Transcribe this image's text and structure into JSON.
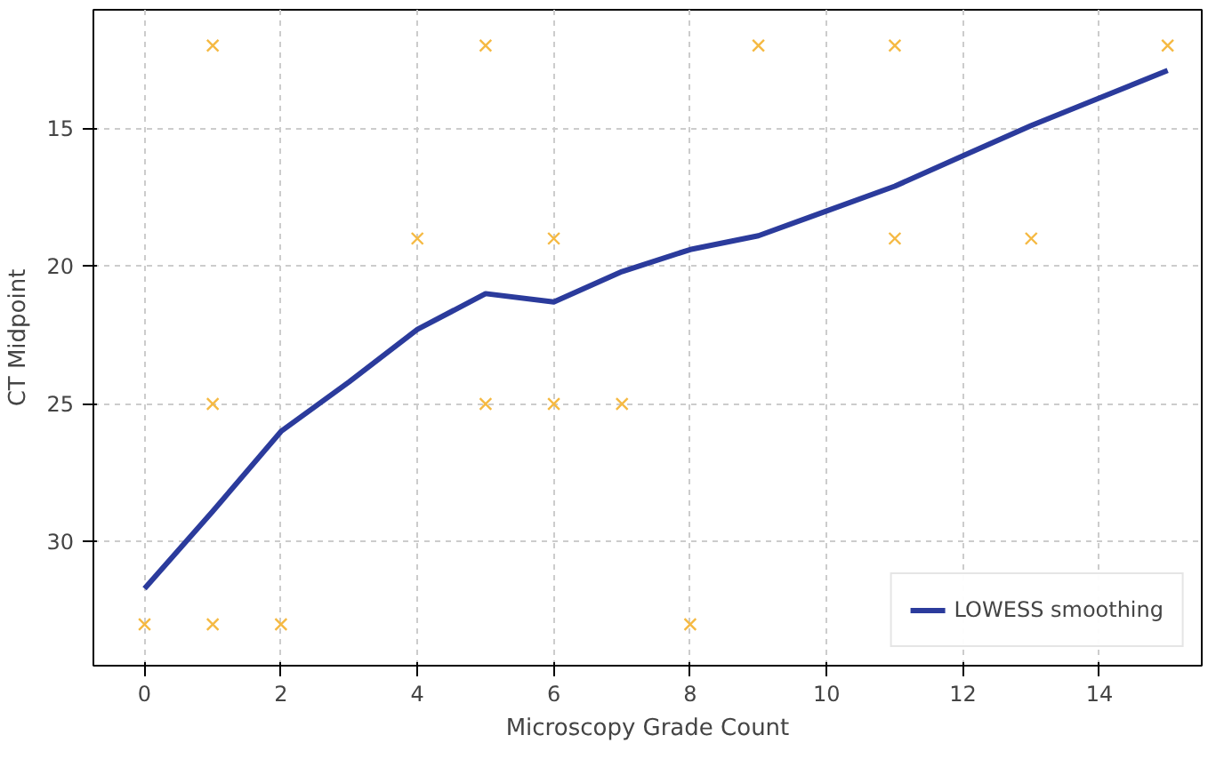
{
  "chart_data": {
    "type": "scatter",
    "xlabel": "Microscopy Grade Count",
    "ylabel": "CT Midpoint",
    "xlim": [
      -0.75,
      15.5
    ],
    "ylim": [
      34.5,
      10.7
    ],
    "xticks": [
      0,
      2,
      4,
      6,
      8,
      10,
      12,
      14
    ],
    "yticks": [
      15,
      20,
      25,
      30
    ],
    "grid": true,
    "legend": "bottom right",
    "series": [
      {
        "color": "#f5b942",
        "marker": "cross",
        "x": [
          0,
          1,
          1,
          1,
          2,
          4,
          5,
          5,
          6,
          6,
          7,
          8,
          9,
          11,
          11,
          13,
          15
        ],
        "values": [
          33,
          12,
          25,
          33,
          33,
          19,
          12,
          25,
          19,
          25,
          25,
          33,
          12,
          12,
          19,
          19,
          12
        ]
      },
      {
        "type": "line",
        "name": "LOWESS smoothing",
        "color": "#2b3b9c",
        "marker": "none",
        "line_style": "solid",
        "x": [
          0,
          1,
          2,
          3,
          4,
          5,
          6,
          7,
          8,
          9,
          10,
          11,
          12,
          13,
          14,
          15
        ],
        "values": [
          31.7,
          28.9,
          26.0,
          24.2,
          22.3,
          21.0,
          21.3,
          20.2,
          19.4,
          18.9,
          18.0,
          17.1,
          16.0,
          14.9,
          13.9,
          12.9
        ]
      }
    ]
  }
}
